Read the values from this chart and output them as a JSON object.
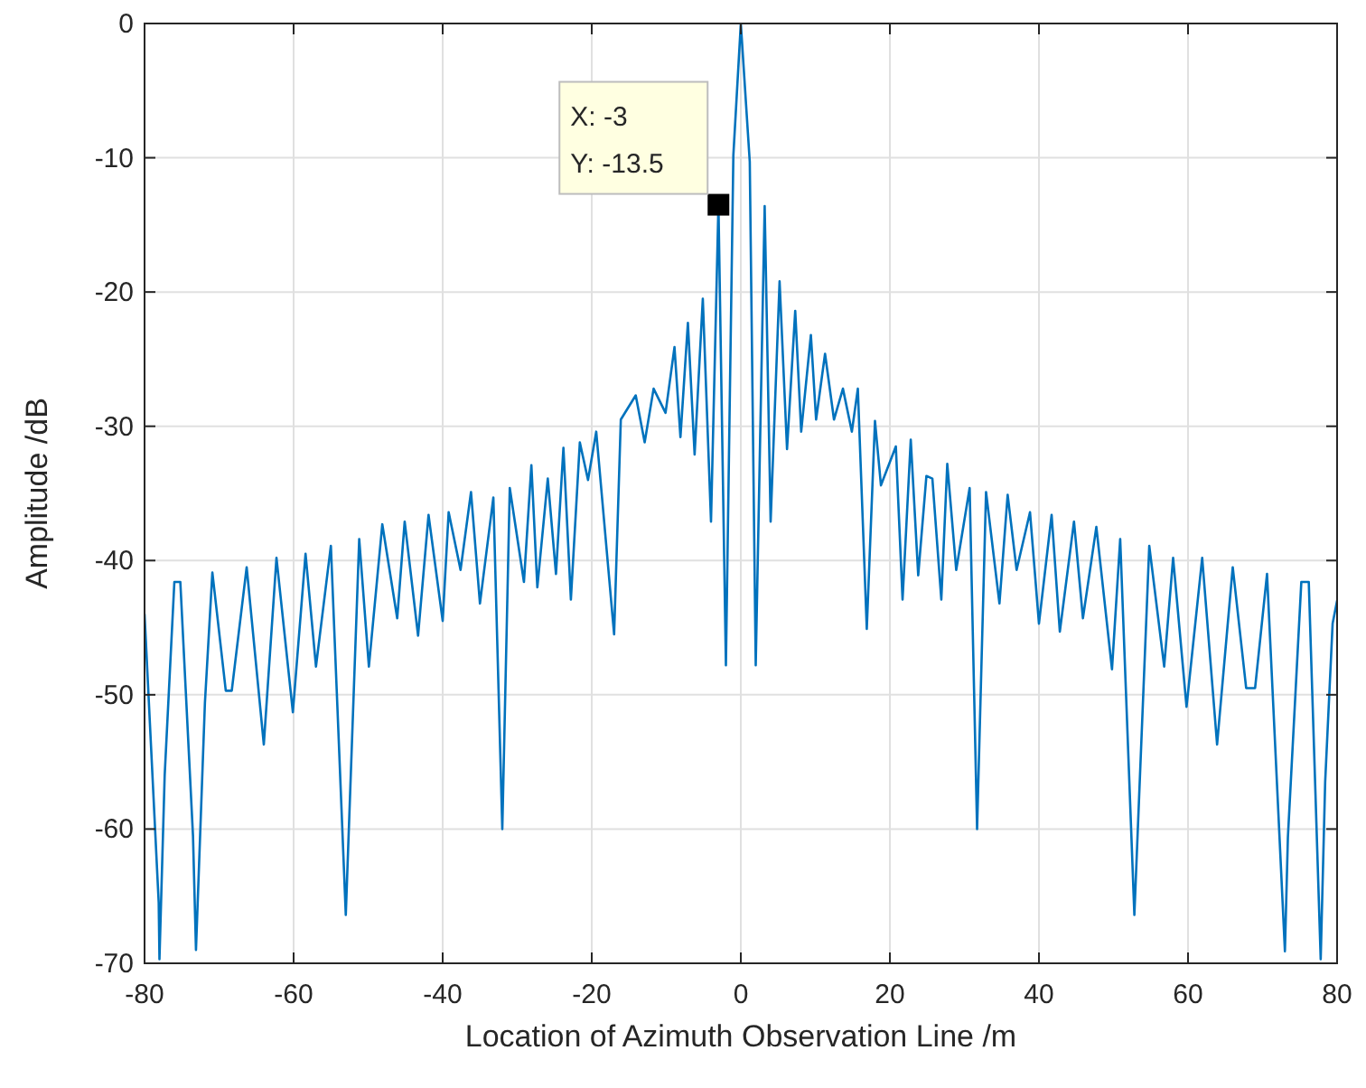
{
  "chart_data": {
    "type": "line",
    "xlabel": "Location of Azimuth Observation Line /m",
    "ylabel": "Amplitude /dB",
    "xlim": [
      -80,
      80
    ],
    "ylim": [
      -70,
      0
    ],
    "xticks": [
      -80,
      -60,
      -40,
      -20,
      0,
      20,
      40,
      60,
      80
    ],
    "yticks": [
      -70,
      -60,
      -50,
      -40,
      -30,
      -20,
      -10,
      0
    ],
    "grid": true,
    "line_style": "solid",
    "marker": "none",
    "series": [
      {
        "color": "#0072bd",
        "x": [
          -80,
          -78.1,
          -78,
          -77.3,
          -76,
          -75.2,
          -73.5,
          -73.1,
          -71.9,
          -70.9,
          -69.1,
          -68.3,
          -66.3,
          -64,
          -62.3,
          -60.1,
          -58.4,
          -57,
          -55,
          -53,
          -51.2,
          -49.9,
          -48.1,
          -46.1,
          -45.1,
          -43.3,
          -41.9,
          -40,
          -39.2,
          -37.6,
          -36.2,
          -35,
          -33.2,
          -32,
          -31,
          -29.1,
          -28.1,
          -27.3,
          -25.9,
          -24.8,
          -23.8,
          -22.8,
          -21.6,
          -20.5,
          -19.4,
          -17,
          -16.1,
          -14.1,
          -12.9,
          -11.7,
          -10.1,
          -8.9,
          -8.1,
          -7.1,
          -6.2,
          -5.1,
          -4,
          -3,
          -2,
          -1,
          0,
          1.2,
          2,
          3.2,
          4,
          5.2,
          6.2,
          7.3,
          8.1,
          9.4,
          10.1,
          11.3,
          12.5,
          13.7,
          14.9,
          15.7,
          16.9,
          18,
          18.8,
          20.8,
          21.7,
          22.8,
          23.8,
          24.9,
          25.7,
          26.9,
          27.7,
          28.9,
          30.7,
          31.7,
          32.9,
          34.7,
          35.8,
          37,
          38.8,
          40,
          41.7,
          42.8,
          44.7,
          45.9,
          47.7,
          49.8,
          50.9,
          52.8,
          54.8,
          56.8,
          58,
          59.8,
          61.9,
          63.9,
          66,
          67.8,
          69,
          70.6,
          73,
          73.4,
          75.2,
          76.2,
          77.8,
          78.4,
          79.4,
          80
        ],
        "values": [
          -44,
          -65.5,
          -69.7,
          -56,
          -41.6,
          -41.6,
          -60.5,
          -69,
          -50.6,
          -40.9,
          -49.7,
          -49.7,
          -40.5,
          -53.7,
          -39.8,
          -51.3,
          -39.5,
          -47.9,
          -38.9,
          -66.4,
          -38.4,
          -47.9,
          -37.3,
          -44.3,
          -37.1,
          -45.6,
          -36.6,
          -44.5,
          -36.4,
          -40.7,
          -34.9,
          -43.2,
          -35.3,
          -60,
          -34.6,
          -41.6,
          -32.9,
          -42,
          -33.9,
          -41,
          -31.6,
          -42.9,
          -31.2,
          -34,
          -30.4,
          -45.5,
          -29.5,
          -27.7,
          -31.2,
          -27.2,
          -29,
          -24.1,
          -30.8,
          -22.3,
          -32.1,
          -20.5,
          -37.1,
          -13.5,
          -47.8,
          -9.8,
          0,
          -10.3,
          -47.8,
          -13.6,
          -37.1,
          -19.2,
          -31.7,
          -21.4,
          -30.4,
          -23.2,
          -29.5,
          -24.6,
          -29.5,
          -27.2,
          -30.4,
          -27.2,
          -45.1,
          -29.6,
          -34.4,
          -31.5,
          -42.9,
          -31,
          -41.1,
          -33.7,
          -33.9,
          -42.9,
          -32.8,
          -40.7,
          -34.6,
          -60,
          -34.9,
          -43.2,
          -35.1,
          -40.7,
          -36.4,
          -44.7,
          -36.6,
          -45.3,
          -37.1,
          -44.3,
          -37.5,
          -48.1,
          -38.4,
          -66.4,
          -38.9,
          -47.9,
          -39.8,
          -50.9,
          -39.8,
          -53.7,
          -40.5,
          -49.5,
          -49.5,
          -41,
          -69.1,
          -60.6,
          -41.6,
          -41.6,
          -69.7,
          -56.5,
          -44.7,
          -43
        ]
      }
    ],
    "annotations": [
      {
        "text": "X: -3\nY: -13.5",
        "x": -3,
        "y": -13.5
      }
    ]
  }
}
